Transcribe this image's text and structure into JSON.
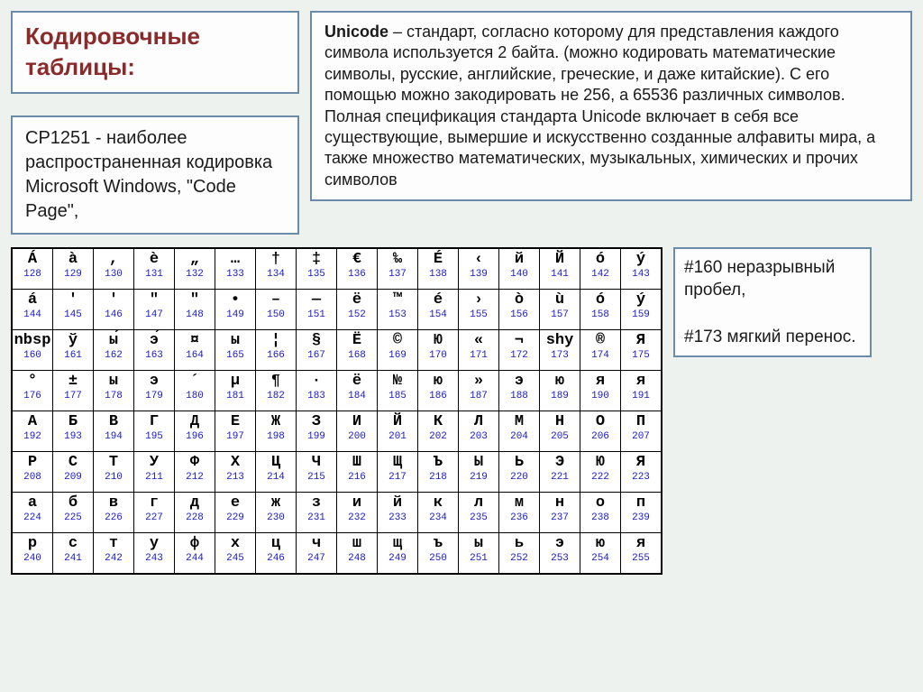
{
  "title": "Кодировочные таблицы:",
  "cp1251": "CP1251 - наиболее распространенная кодировка Microsoft Windows, \"Code Page\",",
  "unicode_bold": "Unicode",
  "unicode_text": " – стандарт, согласно которому для представления каждого символа используется 2 байта. (можно кодировать математические символы, русские, английские, греческие, и даже китайские). С его помощью можно закодировать не 256, а 65536 различных символов. Полная спецификация стандарта Unicode включает в себя все существующие, вымершие и искусственно созданные алфавиты мира, а также множество математических, музыкальных, химических и прочих символов",
  "note1": "#160 неразрывный пробел,",
  "note2": "  #173 мягкий перенос.",
  "charset": {
    "start": 128,
    "cols": 16,
    "rows": 8,
    "glyphs": [
      "Á",
      "à",
      ",",
      "è",
      "„",
      "…",
      "†",
      "‡",
      "€",
      "‰",
      "É",
      "‹",
      "й",
      "Й",
      "ó",
      "ý",
      "á",
      "'",
      "'",
      "\"",
      "\"",
      "•",
      "–",
      "—",
      "ё",
      "™",
      "é",
      "›",
      "ò",
      "ù",
      "ó",
      "ý",
      "nbsp",
      "ў",
      "ы́",
      "э́",
      "¤",
      "ы",
      "¦",
      "§",
      "Ё",
      "©",
      "Ю",
      "«",
      "¬",
      "shy",
      "®",
      "Я",
      "°",
      "±",
      "ы",
      "э",
      "´",
      "µ",
      "¶",
      "·",
      "ё",
      "№",
      "ю",
      "»",
      "э",
      "ю",
      "я",
      "я",
      "А",
      "Б",
      "В",
      "Г",
      "Д",
      "Е",
      "Ж",
      "З",
      "И",
      "Й",
      "К",
      "Л",
      "М",
      "Н",
      "О",
      "П",
      "Р",
      "С",
      "Т",
      "У",
      "Ф",
      "Х",
      "Ц",
      "Ч",
      "Ш",
      "Щ",
      "Ъ",
      "Ы",
      "Ь",
      "Э",
      "Ю",
      "Я",
      "а",
      "б",
      "в",
      "г",
      "д",
      "е",
      "ж",
      "з",
      "и",
      "й",
      "к",
      "л",
      "м",
      "н",
      "о",
      "п",
      "р",
      "с",
      "т",
      "у",
      "ф",
      "х",
      "ц",
      "ч",
      "ш",
      "щ",
      "ъ",
      "ы",
      "ь",
      "э",
      "ю",
      "я"
    ],
    "glyph_color": "#000000",
    "code_color": "#1818cc",
    "border_color": "#000000",
    "cell_bg": "#ffffff",
    "font_family": "Courier New",
    "glyph_fontsize": 17,
    "code_fontsize": 11
  },
  "colors": {
    "page_bg": "#eef2ee",
    "box_border": "#6a8caa",
    "box_bg": "#fdfdfd",
    "title_color": "#8a2a2a",
    "body_text": "#1a1a1a"
  }
}
